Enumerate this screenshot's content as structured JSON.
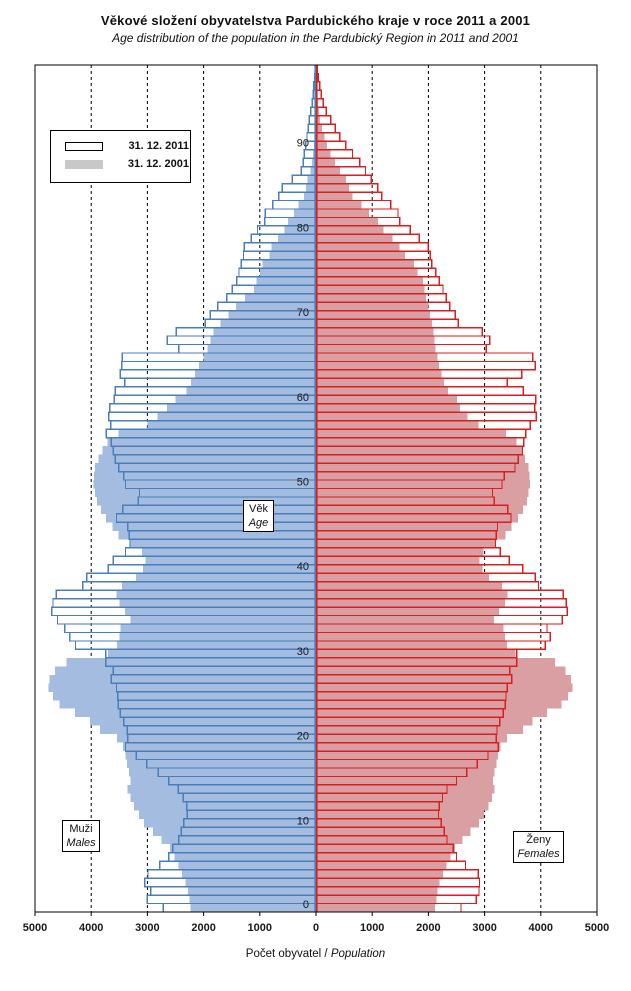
{
  "title": "Věkové složení obyvatelstva Pardubického kraje v roce 2011 a 2001",
  "subtitle": "Age distribution of the population in the Pardubický Region in 2011 and 2001",
  "legend": {
    "items": [
      {
        "label": "31. 12. 2011",
        "style": "outline"
      },
      {
        "label": "31. 12. 2001",
        "style": "fill",
        "swatch_color": "#C8C8C8"
      }
    ]
  },
  "side_labels": {
    "males_cs": "Muži",
    "males_en": "Males",
    "females_cs": "Ženy",
    "females_en": "Females",
    "age_cs": "Věk",
    "age_en": "Age"
  },
  "xaxis": {
    "title_cs": "Počet obyvatel / ",
    "title_en": "Population",
    "tick_labels": [
      "5000",
      "4000",
      "3000",
      "2000",
      "1000",
      "0",
      "1000",
      "2000",
      "3000",
      "4000",
      "5000"
    ]
  },
  "chart_data": {
    "type": "bar",
    "subtype": "population-pyramid",
    "title": "Věkové složení obyvatelstva Pardubického kraje v roce 2011 a 2001",
    "age_axis": {
      "min": 0,
      "max": 99,
      "bin_years": 1,
      "tick_ages": [
        0,
        10,
        20,
        30,
        40,
        50,
        60,
        70,
        80,
        90
      ]
    },
    "value_axis": {
      "max_per_side": 5000,
      "tick_step": 1000,
      "grid": "dashed-vertical"
    },
    "legend_position": "upper-left",
    "colors": {
      "male_2011_stroke": "#4A7EBA",
      "male_2001_fill": "#A3BCDF",
      "female_2011_stroke": "#D81E1E",
      "female_2001_fill": "#D99FA3",
      "grid": "#000000",
      "text": "#1a1a1a"
    },
    "series": [
      {
        "name": "Males 31.12.2011",
        "side": "left",
        "year": 2011,
        "render": "outline",
        "values": [
          2720,
          3000,
          2940,
          3050,
          2990,
          2780,
          2620,
          2550,
          2440,
          2400,
          2350,
          2290,
          2300,
          2360,
          2450,
          2620,
          2810,
          3010,
          3200,
          3390,
          3350,
          3360,
          3420,
          3480,
          3520,
          3530,
          3550,
          3640,
          3610,
          3740,
          3740,
          4280,
          4380,
          4470,
          4600,
          4700,
          4680,
          4620,
          4150,
          4080,
          3700,
          3610,
          3390,
          3310,
          3320,
          3350,
          3550,
          3440,
          3160,
          3140,
          3390,
          3420,
          3510,
          3570,
          3610,
          3640,
          3730,
          3650,
          3690,
          3670,
          3590,
          3570,
          3400,
          3480,
          3460,
          3450,
          2440,
          2650,
          2490,
          1970,
          1880,
          1750,
          1590,
          1490,
          1410,
          1370,
          1330,
          1290,
          1280,
          1150,
          1040,
          910,
          900,
          770,
          660,
          600,
          420,
          260,
          230,
          210,
          180,
          160,
          140,
          120,
          90,
          65,
          50,
          40,
          25,
          15
        ]
      },
      {
        "name": "Females 31.12.2011",
        "side": "right",
        "year": 2011,
        "render": "outline",
        "values": [
          2580,
          2850,
          2900,
          2910,
          2890,
          2660,
          2500,
          2440,
          2330,
          2280,
          2230,
          2180,
          2190,
          2250,
          2330,
          2500,
          2680,
          2870,
          3060,
          3240,
          3210,
          3220,
          3270,
          3330,
          3370,
          3380,
          3400,
          3480,
          3450,
          3570,
          3570,
          4080,
          4170,
          4110,
          4380,
          4470,
          4450,
          4400,
          3960,
          3900,
          3680,
          3440,
          3280,
          3190,
          3210,
          3230,
          3470,
          3410,
          3170,
          3140,
          3310,
          3350,
          3540,
          3600,
          3670,
          3700,
          3730,
          3810,
          3920,
          3890,
          3910,
          3690,
          3400,
          3660,
          3900,
          3860,
          3030,
          3090,
          2960,
          2530,
          2480,
          2380,
          2320,
          2260,
          2190,
          2130,
          2060,
          2030,
          2000,
          1840,
          1680,
          1490,
          1460,
          1330,
          1170,
          1100,
          980,
          880,
          780,
          650,
          530,
          420,
          340,
          260,
          180,
          130,
          90,
          65,
          40,
          20
        ]
      },
      {
        "name": "Males 31.12.2001",
        "side": "left",
        "year": 2001,
        "render": "filled",
        "values": [
          2230,
          2250,
          2280,
          2320,
          2380,
          2450,
          2520,
          2600,
          2750,
          2900,
          3060,
          3150,
          3240,
          3300,
          3350,
          3300,
          3330,
          3360,
          3390,
          3430,
          3540,
          3840,
          4020,
          4290,
          4560,
          4680,
          4760,
          4740,
          4640,
          4440,
          3700,
          3540,
          3500,
          3480,
          3300,
          3400,
          3500,
          3550,
          3450,
          3200,
          3080,
          3030,
          3100,
          3300,
          3510,
          3620,
          3740,
          3830,
          3900,
          3930,
          3960,
          3950,
          3930,
          3870,
          3800,
          3710,
          3510,
          3000,
          2820,
          2650,
          2500,
          2300,
          2220,
          2150,
          2080,
          2000,
          1930,
          1880,
          1820,
          1700,
          1560,
          1420,
          1260,
          1100,
          1060,
          1000,
          950,
          830,
          790,
          680,
          560,
          500,
          390,
          310,
          210,
          180,
          150,
          100,
          75,
          55,
          40,
          28,
          18,
          12,
          8,
          5,
          3,
          2,
          1,
          1
        ]
      },
      {
        "name": "Females 31.12.2001",
        "side": "right",
        "year": 2001,
        "render": "filled",
        "values": [
          2120,
          2140,
          2160,
          2200,
          2260,
          2320,
          2390,
          2470,
          2610,
          2750,
          2900,
          2990,
          3070,
          3130,
          3180,
          3150,
          3180,
          3210,
          3240,
          3280,
          3400,
          3680,
          3850,
          4110,
          4370,
          4480,
          4560,
          4540,
          4440,
          4250,
          3550,
          3400,
          3360,
          3340,
          3170,
          3260,
          3360,
          3410,
          3310,
          3080,
          2960,
          2910,
          2980,
          3170,
          3370,
          3480,
          3590,
          3680,
          3750,
          3780,
          3810,
          3800,
          3780,
          3720,
          3650,
          3570,
          3380,
          2890,
          2700,
          2560,
          2510,
          2350,
          2280,
          2230,
          2190,
          2160,
          2130,
          2110,
          2090,
          2060,
          2030,
          2000,
          1960,
          1930,
          1900,
          1810,
          1740,
          1580,
          1490,
          1360,
          1200,
          1100,
          940,
          810,
          650,
          590,
          530,
          430,
          340,
          260,
          200,
          150,
          110,
          75,
          50,
          32,
          20,
          12,
          7,
          4
        ]
      }
    ]
  }
}
